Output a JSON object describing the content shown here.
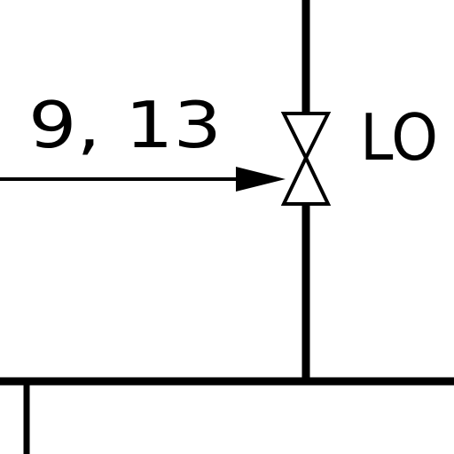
{
  "diagram": {
    "callout_label": "9,  13",
    "valve_tag": "LO",
    "colors": {
      "line": "#000000",
      "background": "#ffffff"
    }
  }
}
